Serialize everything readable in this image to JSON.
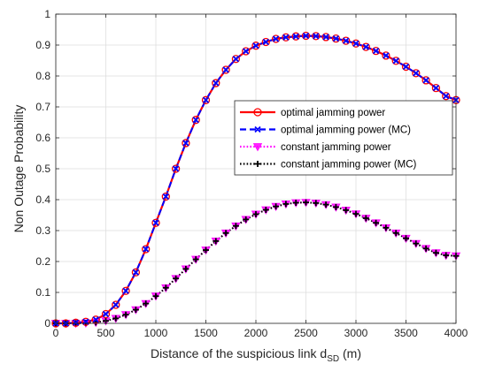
{
  "chart_data": {
    "type": "line",
    "title": "",
    "xlabel": "Distance of the suspicious link d",
    "xlabel_subscript": "SD",
    "xlabel_suffix": " (m)",
    "ylabel": "Non Outage Probability",
    "xlim": [
      0,
      4000
    ],
    "ylim": [
      0,
      1
    ],
    "xticks": [
      0,
      500,
      1000,
      1500,
      2000,
      2500,
      3000,
      3500,
      4000
    ],
    "yticks": [
      0,
      0.1,
      0.2,
      0.3,
      0.4,
      0.5,
      0.6,
      0.7,
      0.8,
      0.9,
      1
    ],
    "grid": true,
    "legend_position": "right",
    "x": [
      0,
      100,
      200,
      300,
      400,
      500,
      600,
      700,
      800,
      900,
      1000,
      1100,
      1200,
      1300,
      1400,
      1500,
      1600,
      1700,
      1800,
      1900,
      2000,
      2100,
      2200,
      2300,
      2400,
      2500,
      2600,
      2700,
      2800,
      2900,
      3000,
      3100,
      3200,
      3300,
      3400,
      3500,
      3600,
      3700,
      3800,
      3900,
      4000
    ],
    "series": [
      {
        "name": "optimal jamming power",
        "color": "#ff0000",
        "line_style": "solid",
        "marker": "circle",
        "values": [
          0.0,
          0.0,
          0.002,
          0.005,
          0.012,
          0.03,
          0.06,
          0.105,
          0.165,
          0.24,
          0.325,
          0.41,
          0.5,
          0.583,
          0.658,
          0.722,
          0.777,
          0.82,
          0.855,
          0.88,
          0.898,
          0.91,
          0.92,
          0.925,
          0.928,
          0.93,
          0.929,
          0.926,
          0.921,
          0.914,
          0.905,
          0.894,
          0.881,
          0.866,
          0.849,
          0.83,
          0.809,
          0.786,
          0.761,
          0.735,
          0.722
        ]
      },
      {
        "name": "optimal jamming power (MC)",
        "color": "#0000ff",
        "line_style": "dashed",
        "marker": "x",
        "values": [
          0.0,
          0.0,
          0.002,
          0.005,
          0.012,
          0.03,
          0.06,
          0.105,
          0.165,
          0.24,
          0.325,
          0.41,
          0.5,
          0.583,
          0.658,
          0.722,
          0.777,
          0.82,
          0.855,
          0.88,
          0.898,
          0.91,
          0.92,
          0.925,
          0.928,
          0.93,
          0.929,
          0.926,
          0.921,
          0.914,
          0.905,
          0.894,
          0.881,
          0.866,
          0.849,
          0.83,
          0.809,
          0.786,
          0.761,
          0.735,
          0.722
        ]
      },
      {
        "name": "constant jamming power",
        "color": "#ff00ff",
        "line_style": "dotted",
        "marker": "triangle-down",
        "values": [
          0.0,
          0.0,
          0.0,
          0.001,
          0.003,
          0.008,
          0.016,
          0.028,
          0.044,
          0.064,
          0.088,
          0.115,
          0.145,
          0.176,
          0.207,
          0.237,
          0.266,
          0.292,
          0.315,
          0.336,
          0.353,
          0.367,
          0.378,
          0.386,
          0.39,
          0.391,
          0.389,
          0.384,
          0.376,
          0.366,
          0.354,
          0.34,
          0.325,
          0.309,
          0.292,
          0.275,
          0.258,
          0.242,
          0.228,
          0.22,
          0.218
        ]
      },
      {
        "name": "constant jamming power (MC)",
        "color": "#000000",
        "line_style": "dotted",
        "marker": "plus",
        "values": [
          0.0,
          0.0,
          0.0,
          0.001,
          0.003,
          0.008,
          0.016,
          0.028,
          0.044,
          0.064,
          0.088,
          0.115,
          0.145,
          0.176,
          0.207,
          0.237,
          0.266,
          0.292,
          0.315,
          0.336,
          0.353,
          0.367,
          0.378,
          0.386,
          0.39,
          0.391,
          0.389,
          0.384,
          0.376,
          0.366,
          0.354,
          0.34,
          0.325,
          0.309,
          0.292,
          0.275,
          0.258,
          0.242,
          0.228,
          0.22,
          0.218
        ]
      }
    ]
  }
}
